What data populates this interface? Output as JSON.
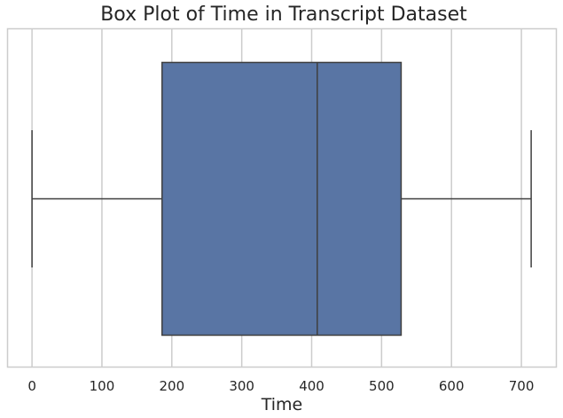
{
  "chart_data": {
    "type": "box",
    "title": "Box Plot of Time in Transcript Dataset",
    "xlabel": "Time",
    "ylabel": "",
    "xlim": [
      -35,
      750
    ],
    "xticks": [
      0,
      100,
      200,
      300,
      400,
      500,
      600,
      700
    ],
    "xtick_labels": [
      "0",
      "100",
      "200",
      "300",
      "400",
      "500",
      "600",
      "700"
    ],
    "grid": true,
    "box": {
      "min": 0,
      "q1": 186,
      "median": 408,
      "q3": 528,
      "max": 714
    },
    "colors": {
      "box_fill": "#5975a4",
      "line": "#3f3f3f",
      "grid": "#cccccc",
      "frame": "#cccccc"
    }
  }
}
